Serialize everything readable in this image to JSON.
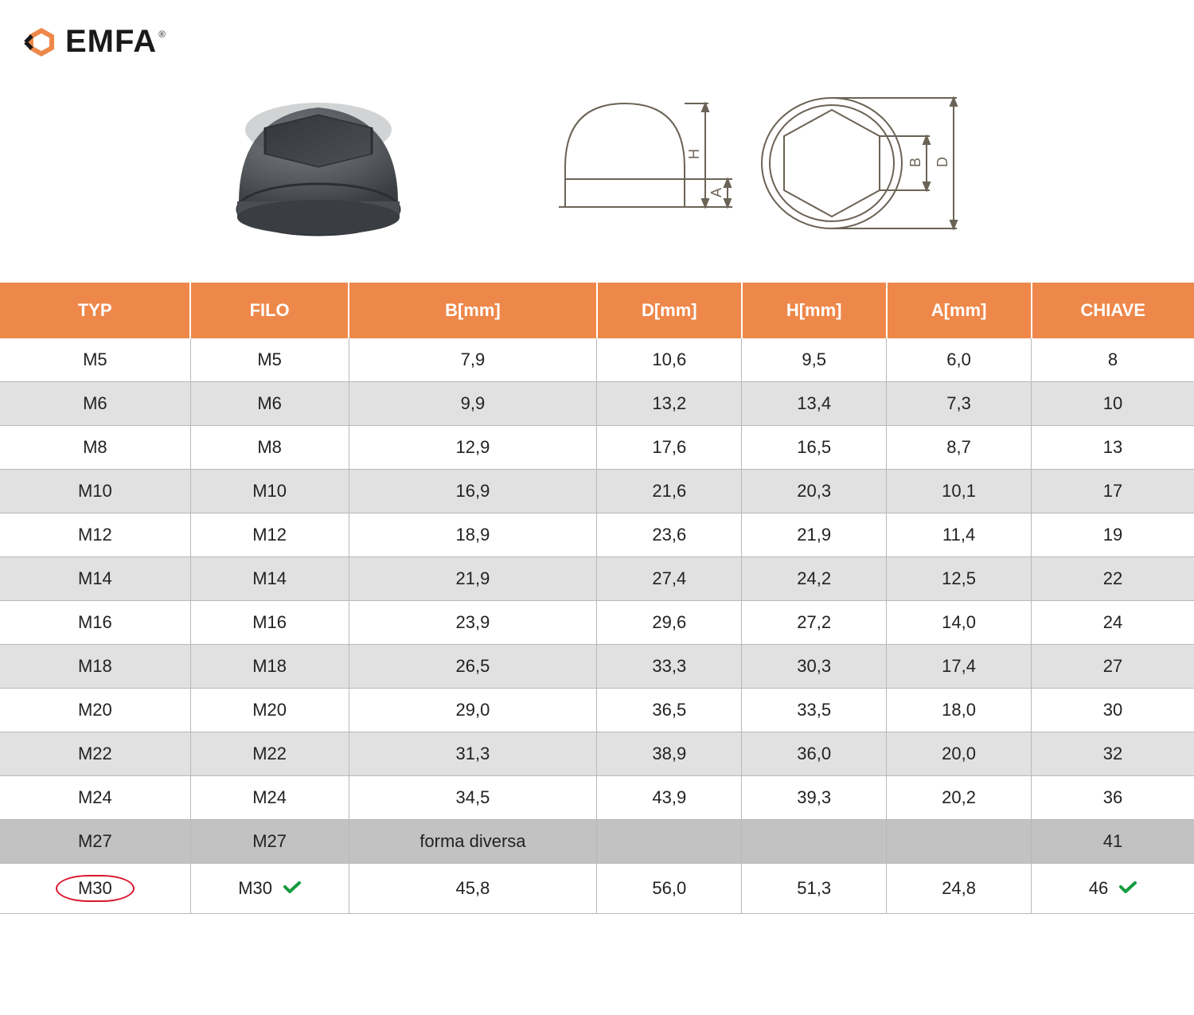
{
  "logo": {
    "text": "EMFA",
    "registered": "®"
  },
  "product": {
    "cap_color": "#565a5f",
    "cap_shadow": "#3a3d41",
    "cap_highlight": "#6a6e73"
  },
  "diagram": {
    "stroke": "#6b6356",
    "labels": {
      "H": "H",
      "A": "A",
      "B": "B",
      "D": "D"
    }
  },
  "table": {
    "header_bg": "#ee884a",
    "header_fg": "#ffffff",
    "row_alt_bg": "#e1e1e1",
    "row_highlight_bg": "#c2c2c2",
    "border_color": "#b8b8b8",
    "circle_color": "#d9162c",
    "check_color": "#159b3e",
    "columns": [
      "TYP",
      "FILO",
      "B[mm]",
      "D[mm]",
      "H[mm]",
      "A[mm]",
      "CHIAVE"
    ],
    "rows": [
      {
        "cells": [
          "M5",
          "M5",
          "7,9",
          "10,6",
          "9,5",
          "6,0",
          "8"
        ],
        "alt": false
      },
      {
        "cells": [
          "M6",
          "M6",
          "9,9",
          "13,2",
          "13,4",
          "7,3",
          "10"
        ],
        "alt": true
      },
      {
        "cells": [
          "M8",
          "M8",
          "12,9",
          "17,6",
          "16,5",
          "8,7",
          "13"
        ],
        "alt": false
      },
      {
        "cells": [
          "M10",
          "M10",
          "16,9",
          "21,6",
          "20,3",
          "10,1",
          "17"
        ],
        "alt": true
      },
      {
        "cells": [
          "M12",
          "M12",
          "18,9",
          "23,6",
          "21,9",
          "11,4",
          "19"
        ],
        "alt": false
      },
      {
        "cells": [
          "M14",
          "M14",
          "21,9",
          "27,4",
          "24,2",
          "12,5",
          "22"
        ],
        "alt": true
      },
      {
        "cells": [
          "M16",
          "M16",
          "23,9",
          "29,6",
          "27,2",
          "14,0",
          "24"
        ],
        "alt": false
      },
      {
        "cells": [
          "M18",
          "M18",
          "26,5",
          "33,3",
          "30,3",
          "17,4",
          "27"
        ],
        "alt": true
      },
      {
        "cells": [
          "M20",
          "M20",
          "29,0",
          "36,5",
          "33,5",
          "18,0",
          "30"
        ],
        "alt": false
      },
      {
        "cells": [
          "M22",
          "M22",
          "31,3",
          "38,9",
          "36,0",
          "20,0",
          "32"
        ],
        "alt": true
      },
      {
        "cells": [
          "M24",
          "M24",
          "34,5",
          "43,9",
          "39,3",
          "20,2",
          "36"
        ],
        "alt": false
      },
      {
        "cells": [
          "M27",
          "M27",
          "forma diversa",
          "",
          "",
          "",
          "41"
        ],
        "alt": false,
        "highlight": true
      },
      {
        "cells": [
          "M30",
          "M30",
          "45,8",
          "56,0",
          "51,3",
          "24,8",
          "46"
        ],
        "alt": false,
        "circled": true,
        "checks": [
          1,
          6
        ]
      }
    ]
  }
}
